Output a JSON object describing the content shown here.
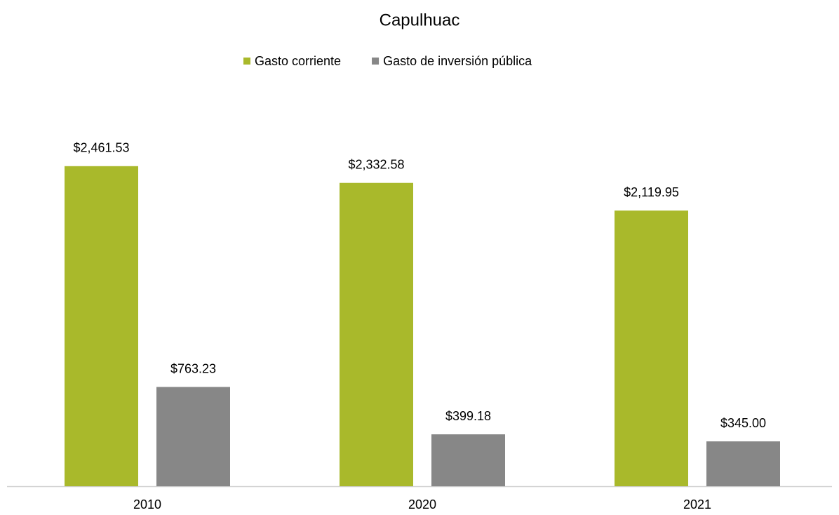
{
  "chart_data": {
    "type": "bar",
    "title": "Capulhuac",
    "categories": [
      "2010",
      "2020",
      "2021"
    ],
    "series": [
      {
        "name": "Gasto corriente",
        "color": "#a9b92b",
        "values": [
          2461.53,
          2332.58,
          2119.95
        ],
        "value_labels": [
          "$2,461.53",
          "$2,332.58",
          "$2,119.95"
        ]
      },
      {
        "name": "Gasto de inversión pública",
        "color": "#878787",
        "values": [
          763.23,
          399.18,
          345.0
        ],
        "value_labels": [
          "$763.23",
          "$399.18",
          "$345.00"
        ]
      }
    ],
    "ylim": [
      0,
      3000
    ],
    "legend": "top"
  }
}
